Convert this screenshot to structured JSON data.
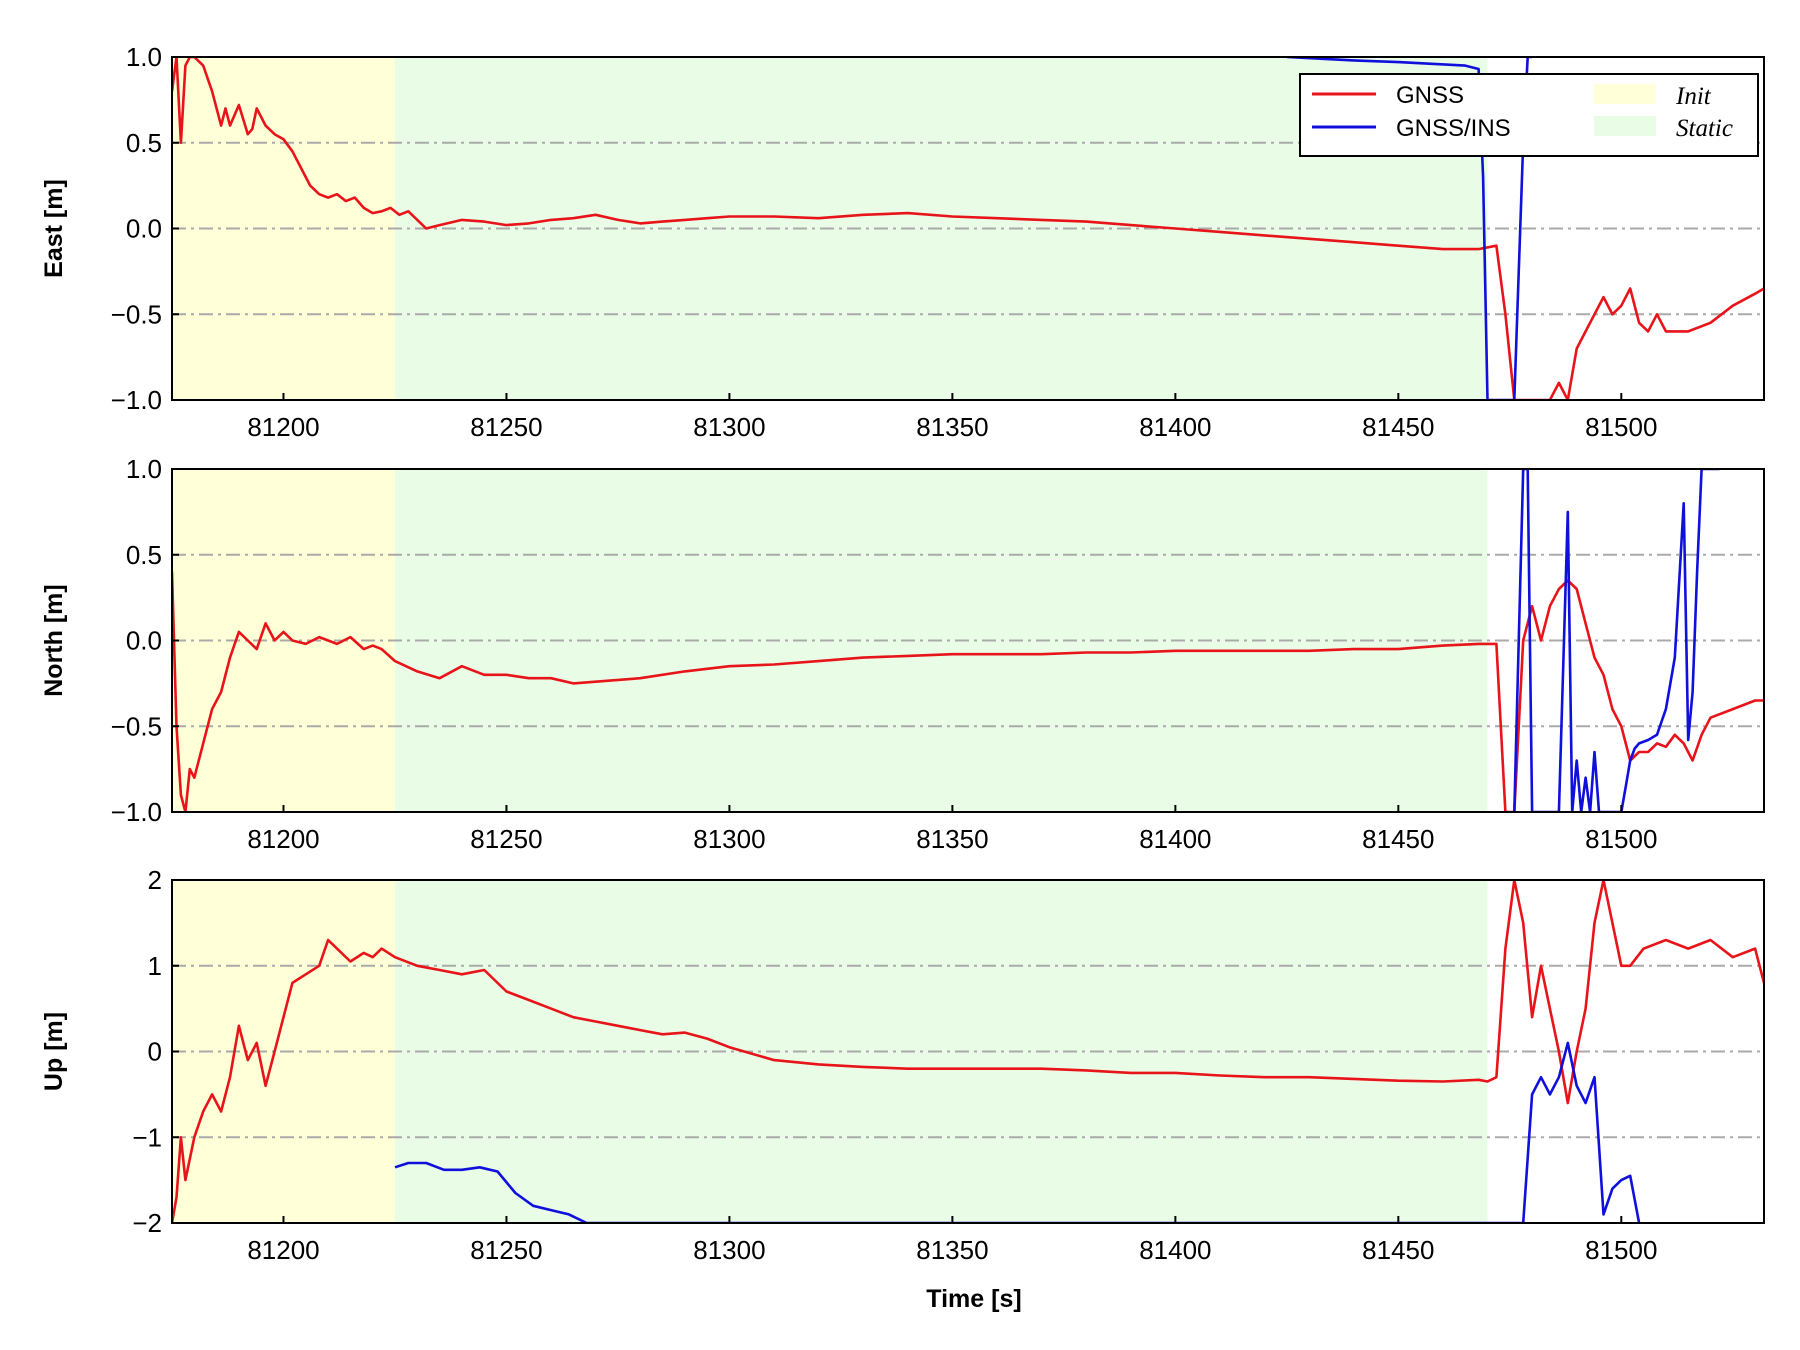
{
  "colors": {
    "gnss": "#e8141a",
    "gnss_ins": "#1010dd",
    "init": "#ffffd8",
    "static": "#e8fce6",
    "grid": "#aaaaaa"
  },
  "xlabel": "Time [s]",
  "legend": {
    "placement": "top-right of first panel",
    "series": [
      "GNSS",
      "GNSS/INS"
    ],
    "regions": [
      "Init",
      "Static"
    ]
  },
  "chart_data": [
    {
      "type": "line",
      "ylabel": "East [m]",
      "xlim": [
        81175,
        81532
      ],
      "ylim": [
        -1.0,
        1.0
      ],
      "xticks": [
        81200,
        81250,
        81300,
        81350,
        81400,
        81450,
        81500
      ],
      "xtick_labels": [
        "81200",
        "81250",
        "81300",
        "81350",
        "81400",
        "81450",
        "81500"
      ],
      "yticks": [
        -1.0,
        -0.5,
        0.0,
        0.5,
        1.0
      ],
      "ytick_labels": [
        "−1.0",
        "−0.5",
        "0.0",
        "0.5",
        "1.0"
      ],
      "grid": "horizontal dash-dot",
      "regions": [
        {
          "name": "Init",
          "x0": 81175,
          "x1": 81225
        },
        {
          "name": "Static",
          "x0": 81225,
          "x1": 81470
        }
      ],
      "series": [
        {
          "name": "GNSS",
          "x": [
            81175,
            81176,
            81177,
            81178,
            81179,
            81180,
            81182,
            81184,
            81186,
            81187,
            81188,
            81190,
            81192,
            81193,
            81194,
            81196,
            81198,
            81200,
            81202,
            81204,
            81206,
            81208,
            81210,
            81212,
            81214,
            81216,
            81218,
            81220,
            81222,
            81224,
            81226,
            81228,
            81230,
            81232,
            81235,
            81240,
            81245,
            81250,
            81255,
            81260,
            81265,
            81270,
            81275,
            81280,
            81285,
            81290,
            81295,
            81300,
            81310,
            81320,
            81330,
            81340,
            81350,
            81360,
            81370,
            81380,
            81390,
            81400,
            81410,
            81420,
            81430,
            81440,
            81450,
            81460,
            81468,
            81472,
            81474,
            81476,
            81478,
            81480,
            81482,
            81484,
            81486,
            81488,
            81490,
            81492,
            81494,
            81496,
            81498,
            81500,
            81502,
            81504,
            81506,
            81508,
            81510,
            81515,
            81520,
            81525,
            81530,
            81532
          ],
          "y": [
            0.8,
            1.0,
            0.5,
            0.95,
            1.0,
            1.0,
            0.95,
            0.8,
            0.6,
            0.7,
            0.6,
            0.72,
            0.55,
            0.58,
            0.7,
            0.6,
            0.55,
            0.52,
            0.45,
            0.35,
            0.25,
            0.2,
            0.18,
            0.2,
            0.16,
            0.18,
            0.12,
            0.09,
            0.1,
            0.12,
            0.08,
            0.1,
            0.05,
            0.0,
            0.02,
            0.05,
            0.04,
            0.02,
            0.03,
            0.05,
            0.06,
            0.08,
            0.05,
            0.03,
            0.04,
            0.05,
            0.06,
            0.07,
            0.07,
            0.06,
            0.08,
            0.09,
            0.07,
            0.06,
            0.05,
            0.04,
            0.02,
            0.0,
            -0.02,
            -0.04,
            -0.06,
            -0.08,
            -0.1,
            -0.12,
            -0.12,
            -0.1,
            -0.5,
            -1.0,
            -1.0,
            -1.0,
            -1.0,
            -1.0,
            -0.9,
            -1.0,
            -0.7,
            -0.6,
            -0.5,
            -0.4,
            -0.5,
            -0.45,
            -0.35,
            -0.55,
            -0.6,
            -0.5,
            -0.6,
            -0.6,
            -0.55,
            -0.45,
            -0.38,
            -0.35
          ]
        },
        {
          "name": "GNSS/INS",
          "x": [
            81425,
            81440,
            81450,
            81458,
            81465,
            81468,
            81469,
            81470,
            81472,
            81474,
            81476,
            81478,
            81479,
            81480
          ],
          "y": [
            1.0,
            0.98,
            0.97,
            0.96,
            0.95,
            0.93,
            0.3,
            -1.0,
            -1.0,
            -1.0,
            -1.0,
            0.5,
            1.0,
            1.0
          ]
        }
      ]
    },
    {
      "type": "line",
      "ylabel": "North [m]",
      "xlim": [
        81175,
        81532
      ],
      "ylim": [
        -1.0,
        1.0
      ],
      "xticks": [
        81200,
        81250,
        81300,
        81350,
        81400,
        81450,
        81500
      ],
      "xtick_labels": [
        "81200",
        "81250",
        "81300",
        "81350",
        "81400",
        "81450",
        "81500"
      ],
      "yticks": [
        -1.0,
        -0.5,
        0.0,
        0.5,
        1.0
      ],
      "ytick_labels": [
        "−1.0",
        "−0.5",
        "0.0",
        "0.5",
        "1.0"
      ],
      "grid": "horizontal dash-dot",
      "regions": [
        {
          "name": "Init",
          "x0": 81175,
          "x1": 81225
        },
        {
          "name": "Static",
          "x0": 81225,
          "x1": 81470
        }
      ],
      "series": [
        {
          "name": "GNSS",
          "x": [
            81175,
            81176,
            81177,
            81178,
            81179,
            81180,
            81182,
            81184,
            81186,
            81188,
            81190,
            81192,
            81194,
            81196,
            81198,
            81200,
            81202,
            81205,
            81208,
            81210,
            81212,
            81215,
            81218,
            81220,
            81222,
            81225,
            81230,
            81235,
            81240,
            81245,
            81250,
            81255,
            81260,
            81265,
            81270,
            81280,
            81290,
            81300,
            81310,
            81320,
            81330,
            81340,
            81350,
            81360,
            81370,
            81380,
            81390,
            81400,
            81410,
            81420,
            81430,
            81440,
            81450,
            81460,
            81468,
            81472,
            81474,
            81476,
            81478,
            81480,
            81482,
            81484,
            81486,
            81488,
            81490,
            81492,
            81494,
            81496,
            81498,
            81500,
            81502,
            81504,
            81506,
            81508,
            81510,
            81512,
            81514,
            81516,
            81518,
            81520,
            81525,
            81530,
            81532
          ],
          "y": [
            0.4,
            -0.5,
            -0.9,
            -1.0,
            -0.75,
            -0.8,
            -0.6,
            -0.4,
            -0.3,
            -0.1,
            0.05,
            0.0,
            -0.05,
            0.1,
            0.0,
            0.05,
            0.0,
            -0.02,
            0.02,
            0.0,
            -0.02,
            0.02,
            -0.05,
            -0.03,
            -0.05,
            -0.12,
            -0.18,
            -0.22,
            -0.15,
            -0.2,
            -0.2,
            -0.22,
            -0.22,
            -0.25,
            -0.24,
            -0.22,
            -0.18,
            -0.15,
            -0.14,
            -0.12,
            -0.1,
            -0.09,
            -0.08,
            -0.08,
            -0.08,
            -0.07,
            -0.07,
            -0.06,
            -0.06,
            -0.06,
            -0.06,
            -0.05,
            -0.05,
            -0.03,
            -0.02,
            -0.02,
            -1.0,
            -1.0,
            0.0,
            0.2,
            0.0,
            0.2,
            0.3,
            0.35,
            0.3,
            0.1,
            -0.1,
            -0.2,
            -0.4,
            -0.5,
            -0.7,
            -0.65,
            -0.65,
            -0.6,
            -0.62,
            -0.55,
            -0.6,
            -0.7,
            -0.55,
            -0.45,
            -0.4,
            -0.35,
            -0.35
          ]
        },
        {
          "name": "GNSS/INS",
          "x": [
            81476,
            81478,
            81479,
            81480,
            81482,
            81484,
            81486,
            81488,
            81489,
            81490,
            81491,
            81492,
            81493,
            81494,
            81495,
            81496,
            81497,
            81498,
            81500,
            81501,
            81502,
            81503,
            81504,
            81506,
            81508,
            81510,
            81512,
            81514,
            81515,
            81516,
            81517,
            81518,
            81519,
            81520,
            81522
          ],
          "y": [
            -1.0,
            1.0,
            1.0,
            -1.0,
            -1.0,
            -1.0,
            -1.0,
            0.75,
            -1.0,
            -0.7,
            -1.0,
            -0.8,
            -1.0,
            -0.65,
            -1.0,
            -1.0,
            -1.0,
            -1.0,
            -1.0,
            -0.85,
            -0.7,
            -0.63,
            -0.6,
            -0.58,
            -0.55,
            -0.4,
            -0.1,
            0.8,
            -0.58,
            -0.3,
            0.4,
            1.0,
            1.0,
            1.0,
            1.0
          ]
        }
      ]
    },
    {
      "type": "line",
      "ylabel": "Up [m]",
      "xlim": [
        81175,
        81532
      ],
      "ylim": [
        -2,
        2
      ],
      "xticks": [
        81200,
        81250,
        81300,
        81350,
        81400,
        81450,
        81500
      ],
      "xtick_labels": [
        "81200",
        "81250",
        "81300",
        "81350",
        "81400",
        "81450",
        "81500"
      ],
      "yticks": [
        -2,
        -1,
        0,
        1,
        2
      ],
      "ytick_labels": [
        "−2",
        "−1",
        "0",
        "1",
        "2"
      ],
      "grid": "horizontal dash-dot",
      "regions": [
        {
          "name": "Init",
          "x0": 81175,
          "x1": 81225
        },
        {
          "name": "Static",
          "x0": 81225,
          "x1": 81470
        }
      ],
      "series": [
        {
          "name": "GNSS",
          "x": [
            81175,
            81176,
            81177,
            81178,
            81180,
            81182,
            81184,
            81186,
            81188,
            81190,
            81192,
            81194,
            81196,
            81198,
            81200,
            81202,
            81205,
            81208,
            81210,
            81212,
            81215,
            81218,
            81220,
            81222,
            81225,
            81230,
            81235,
            81240,
            81245,
            81250,
            81255,
            81260,
            81265,
            81270,
            81275,
            81280,
            81285,
            81290,
            81295,
            81300,
            81310,
            81320,
            81330,
            81340,
            81350,
            81360,
            81370,
            81380,
            81390,
            81400,
            81410,
            81420,
            81430,
            81440,
            81450,
            81460,
            81468,
            81470,
            81472,
            81474,
            81476,
            81478,
            81480,
            81482,
            81484,
            81486,
            81488,
            81490,
            81492,
            81494,
            81496,
            81498,
            81500,
            81502,
            81505,
            81510,
            81515,
            81520,
            81525,
            81530,
            81532
          ],
          "y": [
            -2.0,
            -1.7,
            -1.0,
            -1.5,
            -1.0,
            -0.7,
            -0.5,
            -0.7,
            -0.3,
            0.3,
            -0.1,
            0.1,
            -0.4,
            0.0,
            0.4,
            0.8,
            0.9,
            1.0,
            1.3,
            1.2,
            1.05,
            1.15,
            1.1,
            1.2,
            1.1,
            1.0,
            0.95,
            0.9,
            0.95,
            0.7,
            0.6,
            0.5,
            0.4,
            0.35,
            0.3,
            0.25,
            0.2,
            0.22,
            0.15,
            0.05,
            -0.1,
            -0.15,
            -0.18,
            -0.2,
            -0.2,
            -0.2,
            -0.2,
            -0.22,
            -0.25,
            -0.25,
            -0.28,
            -0.3,
            -0.3,
            -0.32,
            -0.34,
            -0.35,
            -0.33,
            -0.35,
            -0.3,
            1.2,
            2.0,
            1.5,
            0.4,
            1.0,
            0.5,
            0.0,
            -0.6,
            0.0,
            0.5,
            1.5,
            2.0,
            1.5,
            1.0,
            1.0,
            1.2,
            1.3,
            1.2,
            1.3,
            1.1,
            1.2,
            0.8
          ]
        },
        {
          "name": "GNSS/INS",
          "x": [
            81225,
            81228,
            81232,
            81236,
            81240,
            81244,
            81248,
            81252,
            81256,
            81260,
            81264,
            81268,
            81272,
            81476,
            81478,
            81480,
            81482,
            81484,
            81486,
            81488,
            81490,
            81492,
            81494,
            81496,
            81498,
            81500,
            81502,
            81504
          ],
          "y": [
            -1.35,
            -1.3,
            -1.3,
            -1.38,
            -1.38,
            -1.35,
            -1.4,
            -1.65,
            -1.8,
            -1.85,
            -1.9,
            -2.0,
            -2.0,
            -2.0,
            -2.0,
            -0.5,
            -0.3,
            -0.5,
            -0.3,
            0.1,
            -0.4,
            -0.6,
            -0.3,
            -1.9,
            -1.6,
            -1.5,
            -1.45,
            -2.0
          ]
        }
      ]
    }
  ]
}
